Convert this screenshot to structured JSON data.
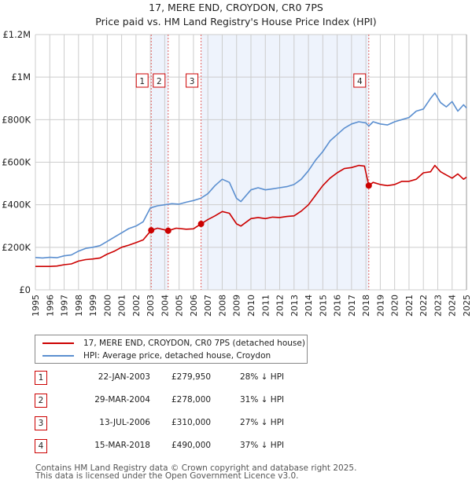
{
  "header": {
    "title": "17, MERE END, CROYDON, CR0 7PS",
    "subtitle": "Price paid vs. HM Land Registry's House Price Index (HPI)"
  },
  "colors": {
    "property": "#cc0000",
    "hpi": "#5b8fd0",
    "shade": "#eef3fc",
    "grid": "#cccccc",
    "marker_line": "#e06060"
  },
  "chart_data": {
    "type": "line",
    "title": "17, MERE END, CROYDON, CR0 7PS",
    "subtitle": "Price paid vs. HM Land Registry's House Price Index (HPI)",
    "xlabel": "",
    "ylabel": "",
    "xlim": [
      1995,
      2025
    ],
    "ylim": [
      0,
      1200000
    ],
    "grid": true,
    "legend_position": "below",
    "x_ticks": [
      "1995",
      "1996",
      "1997",
      "1998",
      "1999",
      "2000",
      "2001",
      "2002",
      "2003",
      "2004",
      "2005",
      "2006",
      "2007",
      "2008",
      "2009",
      "2010",
      "2011",
      "2012",
      "2013",
      "2014",
      "2015",
      "2016",
      "2017",
      "2018",
      "2019",
      "2020",
      "2021",
      "2022",
      "2023",
      "2024",
      "2025"
    ],
    "y_ticks": [
      {
        "value": 0,
        "label": "£0"
      },
      {
        "value": 200000,
        "label": "£200K"
      },
      {
        "value": 400000,
        "label": "£400K"
      },
      {
        "value": 600000,
        "label": "£600K"
      },
      {
        "value": 800000,
        "label": "£800K"
      },
      {
        "value": 1000000,
        "label": "£1M"
      },
      {
        "value": 1200000,
        "label": "£1.2M"
      }
    ],
    "series": [
      {
        "name": "17, MERE END, CROYDON, CR0 7PS (detached house)",
        "color": "#cc0000",
        "x": [
          1995.0,
          1995.5,
          1996.0,
          1996.5,
          1997.0,
          1997.5,
          1998.0,
          1998.5,
          1999.0,
          1999.5,
          2000.0,
          2000.5,
          2001.0,
          2001.5,
          2002.0,
          2002.5,
          2003.06,
          2003.5,
          2004.24,
          2004.8,
          2005.5,
          2006.0,
          2006.53,
          2007.0,
          2007.5,
          2008.0,
          2008.5,
          2009.0,
          2009.3,
          2010.0,
          2010.5,
          2011.0,
          2011.5,
          2012.0,
          2012.5,
          2013.0,
          2013.5,
          2014.0,
          2014.5,
          2015.0,
          2015.5,
          2016.0,
          2016.5,
          2017.0,
          2017.5,
          2017.9,
          2018.2,
          2018.5,
          2019.0,
          2019.5,
          2020.0,
          2020.5,
          2021.0,
          2021.5,
          2022.0,
          2022.5,
          2022.8,
          2023.2,
          2023.6,
          2024.0,
          2024.4,
          2024.8,
          2025.0
        ],
        "values": [
          110000,
          110000,
          110000,
          112000,
          118000,
          122000,
          135000,
          142000,
          145000,
          150000,
          168000,
          182000,
          200000,
          210000,
          222000,
          235000,
          279950,
          290000,
          278000,
          290000,
          285000,
          287000,
          310000,
          330000,
          348000,
          368000,
          360000,
          310000,
          300000,
          335000,
          340000,
          335000,
          342000,
          340000,
          345000,
          348000,
          370000,
          400000,
          445000,
          490000,
          525000,
          550000,
          570000,
          575000,
          585000,
          582000,
          490000,
          505000,
          495000,
          490000,
          495000,
          510000,
          510000,
          520000,
          550000,
          555000,
          585000,
          555000,
          540000,
          525000,
          545000,
          520000,
          530000
        ]
      },
      {
        "name": "HPI: Average price, detached house, Croydon",
        "color": "#5b8fd0",
        "x": [
          1995.0,
          1995.5,
          1996.0,
          1996.5,
          1997.0,
          1997.5,
          1998.0,
          1998.5,
          1999.0,
          1999.5,
          2000.0,
          2000.5,
          2001.0,
          2001.5,
          2002.0,
          2002.5,
          2003.0,
          2003.5,
          2004.0,
          2004.5,
          2005.0,
          2005.5,
          2006.0,
          2006.5,
          2007.0,
          2007.5,
          2008.0,
          2008.5,
          2009.0,
          2009.3,
          2010.0,
          2010.5,
          2011.0,
          2011.5,
          2012.0,
          2012.5,
          2013.0,
          2013.5,
          2014.0,
          2014.5,
          2015.0,
          2015.5,
          2016.0,
          2016.5,
          2017.0,
          2017.5,
          2018.0,
          2018.2,
          2018.5,
          2019.0,
          2019.5,
          2020.0,
          2020.5,
          2021.0,
          2021.5,
          2022.0,
          2022.5,
          2022.8,
          2023.2,
          2023.6,
          2024.0,
          2024.4,
          2024.8,
          2025.0
        ],
        "values": [
          152000,
          150000,
          153000,
          151000,
          160000,
          164000,
          182000,
          195000,
          200000,
          208000,
          228000,
          248000,
          268000,
          288000,
          300000,
          320000,
          385000,
          395000,
          400000,
          405000,
          403000,
          412000,
          420000,
          430000,
          452000,
          490000,
          520000,
          505000,
          430000,
          415000,
          470000,
          480000,
          470000,
          475000,
          480000,
          485000,
          495000,
          520000,
          560000,
          610000,
          650000,
          700000,
          730000,
          760000,
          780000,
          790000,
          785000,
          770000,
          790000,
          780000,
          775000,
          790000,
          800000,
          810000,
          840000,
          850000,
          900000,
          925000,
          880000,
          860000,
          885000,
          840000,
          870000,
          855000
        ]
      }
    ],
    "sales": [
      {
        "num": "1",
        "x": 2003.06,
        "value": 279950
      },
      {
        "num": "2",
        "x": 2004.24,
        "value": 278000
      },
      {
        "num": "3",
        "x": 2006.53,
        "value": 310000
      },
      {
        "num": "4",
        "x": 2018.2,
        "value": 490000
      }
    ],
    "shaded_ranges": [
      [
        2003.06,
        2004.24
      ],
      [
        2006.53,
        2018.2
      ]
    ]
  },
  "legend": {
    "items": [
      {
        "label": "17, MERE END, CROYDON, CR0 7PS (detached house)",
        "color": "#cc0000"
      },
      {
        "label": "HPI: Average price, detached house, Croydon",
        "color": "#5b8fd0"
      }
    ]
  },
  "sales_table": [
    {
      "num": "1",
      "date": "22-JAN-2003",
      "price": "£279,950",
      "hpi": "28% ↓ HPI"
    },
    {
      "num": "2",
      "date": "29-MAR-2004",
      "price": "£278,000",
      "hpi": "31% ↓ HPI"
    },
    {
      "num": "3",
      "date": "13-JUL-2006",
      "price": "£310,000",
      "hpi": "27% ↓ HPI"
    },
    {
      "num": "4",
      "date": "15-MAR-2018",
      "price": "£490,000",
      "hpi": "37% ↓ HPI"
    }
  ],
  "footer": {
    "line1": "Contains HM Land Registry data © Crown copyright and database right 2025.",
    "line2": "This data is licensed under the Open Government Licence v3.0."
  }
}
